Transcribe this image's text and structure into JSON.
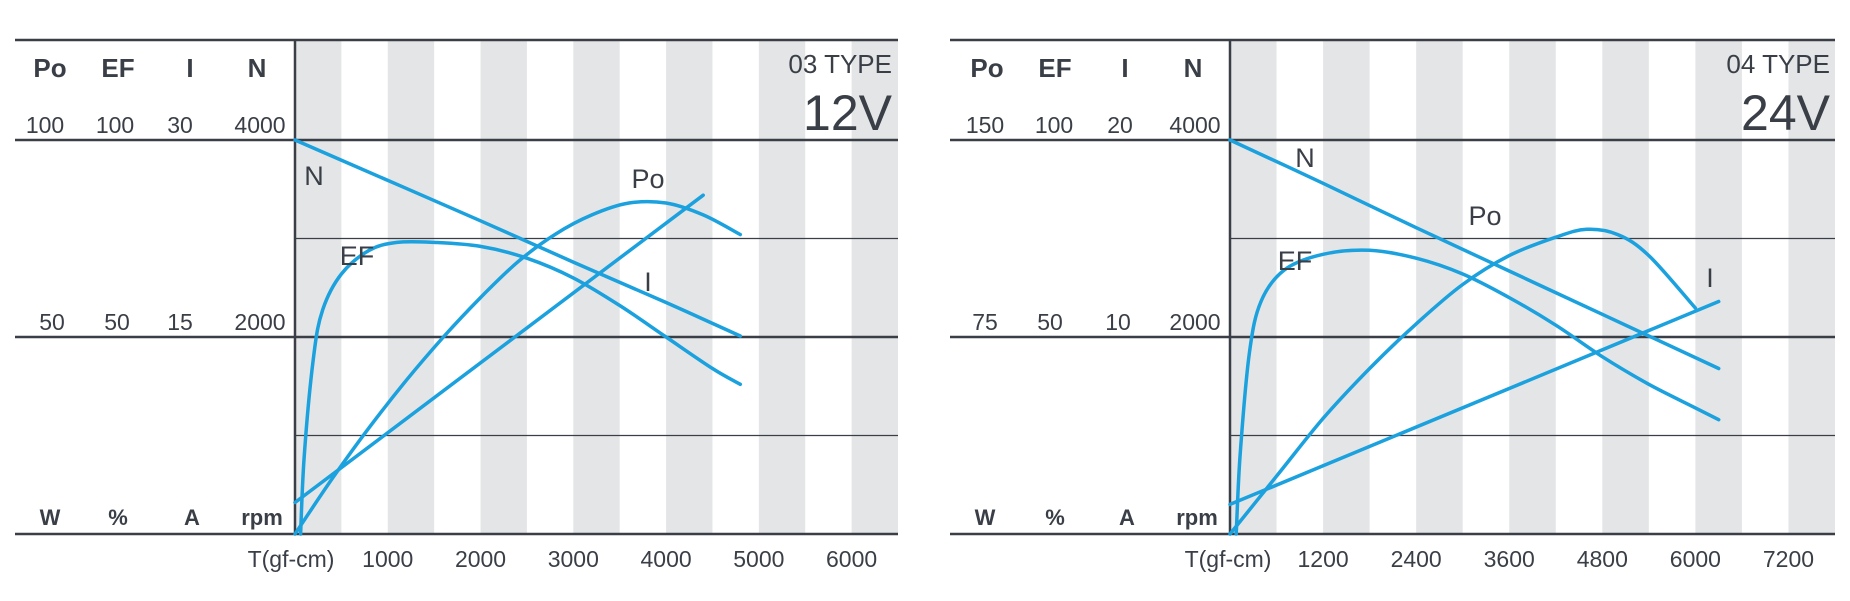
{
  "chart_data": [
    {
      "type": "line",
      "model": "03 TYPE",
      "voltage": "12V",
      "xlabel": "T(gf-cm)",
      "x_ticks": [
        1000,
        2000,
        3000,
        4000,
        5000,
        6000
      ],
      "xlim": [
        0,
        6500
      ],
      "axis_headers": [
        "Po",
        "EF",
        "I",
        "N"
      ],
      "scale_top": [
        "100",
        "100",
        "30",
        "4000"
      ],
      "scale_mid": [
        "50",
        "50",
        "15",
        "2000"
      ],
      "units": [
        "W",
        "%",
        "A",
        "rpm"
      ],
      "series": [
        {
          "name": "N",
          "max": 4000,
          "points": [
            [
              0,
              4000
            ],
            [
              1000,
              3590
            ],
            [
              2000,
              3180
            ],
            [
              3000,
              2760
            ],
            [
              4000,
              2350
            ],
            [
              4800,
              2010
            ]
          ]
        },
        {
          "name": "Po",
          "max": 100,
          "points": [
            [
              0,
              0
            ],
            [
              400,
              14
            ],
            [
              800,
              27
            ],
            [
              1200,
              39
            ],
            [
              1600,
              50
            ],
            [
              2000,
              60
            ],
            [
              2400,
              69
            ],
            [
              2800,
              76
            ],
            [
              3200,
              81
            ],
            [
              3600,
              84
            ],
            [
              4000,
              84
            ],
            [
              4400,
              81
            ],
            [
              4800,
              76
            ]
          ]
        },
        {
          "name": "EF",
          "max": 100,
          "points": [
            [
              60,
              0
            ],
            [
              100,
              20
            ],
            [
              200,
              45
            ],
            [
              300,
              57
            ],
            [
              500,
              66
            ],
            [
              800,
              72
            ],
            [
              1100,
              74
            ],
            [
              1500,
              74
            ],
            [
              2000,
              73
            ],
            [
              2500,
              70
            ],
            [
              3000,
              65
            ],
            [
              3500,
              58
            ],
            [
              4000,
              50
            ],
            [
              4500,
              42
            ],
            [
              4800,
              38
            ]
          ]
        },
        {
          "name": "I",
          "max": 30,
          "points": [
            [
              0,
              2.4
            ],
            [
              4400,
              25.8
            ]
          ]
        }
      ]
    },
    {
      "type": "line",
      "model": "04 TYPE",
      "voltage": "24V",
      "xlabel": "T(gf-cm)",
      "x_ticks": [
        1200,
        2400,
        3600,
        4800,
        6000,
        7200
      ],
      "xlim": [
        0,
        7800
      ],
      "axis_headers": [
        "Po",
        "EF",
        "I",
        "N"
      ],
      "scale_top": [
        "150",
        "100",
        "20",
        "4000"
      ],
      "scale_mid": [
        "75",
        "50",
        "10",
        "2000"
      ],
      "units": [
        "W",
        "%",
        "A",
        "rpm"
      ],
      "series": [
        {
          "name": "N",
          "max": 4000,
          "points": [
            [
              0,
              4000
            ],
            [
              1200,
              3560
            ],
            [
              2400,
              3110
            ],
            [
              3600,
              2670
            ],
            [
              4800,
              2230
            ],
            [
              6300,
              1680
            ]
          ]
        },
        {
          "name": "Po",
          "max": 150,
          "points": [
            [
              0,
              0
            ],
            [
              600,
              22
            ],
            [
              1200,
              44
            ],
            [
              1800,
              63
            ],
            [
              2400,
              80
            ],
            [
              3000,
              95
            ],
            [
              3600,
              106
            ],
            [
              4200,
              113
            ],
            [
              4600,
              116
            ],
            [
              5000,
              114
            ],
            [
              5400,
              106
            ],
            [
              6000,
              86
            ]
          ]
        },
        {
          "name": "EF",
          "max": 100,
          "points": [
            [
              80,
              0
            ],
            [
              130,
              20
            ],
            [
              250,
              46
            ],
            [
              400,
              59
            ],
            [
              700,
              67
            ],
            [
              1200,
              71
            ],
            [
              1800,
              72
            ],
            [
              2400,
              70
            ],
            [
              3000,
              66
            ],
            [
              3600,
              60
            ],
            [
              4200,
              53
            ],
            [
              4800,
              45
            ],
            [
              5400,
              38
            ],
            [
              6000,
              32
            ],
            [
              6300,
              29
            ]
          ]
        },
        {
          "name": "I",
          "max": 20,
          "points": [
            [
              0,
              1.5
            ],
            [
              6300,
              11.8
            ]
          ]
        }
      ]
    }
  ],
  "curve_color": "#1ba1de",
  "grid_color": "#3a3f47",
  "stripe_color": "#e4e5e6"
}
